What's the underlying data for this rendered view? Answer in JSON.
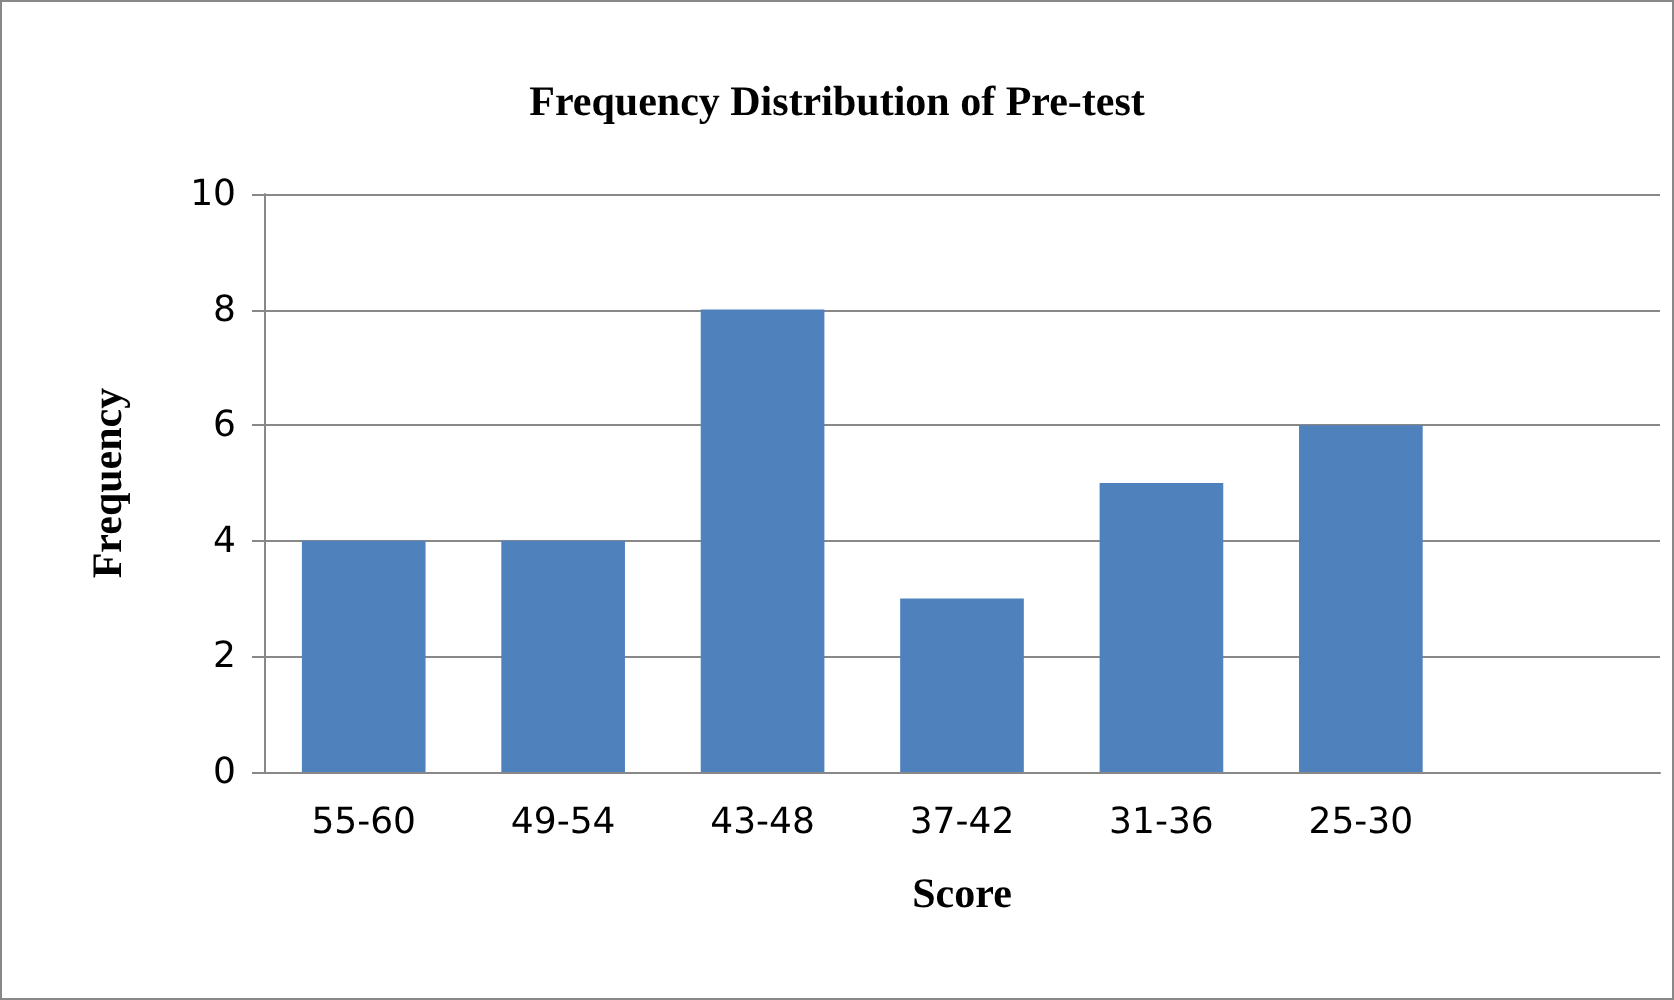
{
  "chart_data": {
    "type": "bar",
    "title": "Frequency Distribution of Pre-test",
    "xlabel": "Score",
    "ylabel": "Frequency",
    "categories": [
      "55-60",
      "49-54",
      "43-48",
      "37-42",
      "31-36",
      "25-30",
      null
    ],
    "values": [
      4,
      4,
      8,
      3,
      5,
      6,
      null
    ],
    "color": "#4f81bd",
    "ylim": [
      0,
      10
    ],
    "yticks": [
      0,
      2,
      4,
      6,
      8,
      10
    ],
    "grid": "y"
  }
}
